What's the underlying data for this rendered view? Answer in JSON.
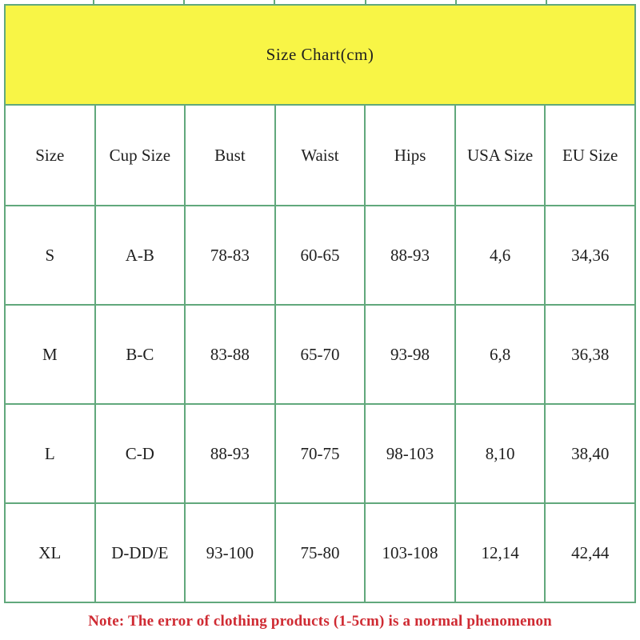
{
  "title": "Size Chart(cm)",
  "note": "Note: The error of clothing products (1-5cm) is a normal phenomenon",
  "colors": {
    "header_background": "#f8f546",
    "table_border": "#61a87c",
    "note_text": "#cf2b33",
    "cell_text": "#1f1f1f",
    "page_background": "#ffffff"
  },
  "chart_data": {
    "type": "table",
    "title": "Size Chart(cm)",
    "units": "cm",
    "columns": [
      "Size",
      "Cup Size",
      "Bust",
      "Waist",
      "Hips",
      "USA Size",
      "EU Size"
    ],
    "rows": [
      [
        "S",
        "A-B",
        "78-83",
        "60-65",
        "88-93",
        "4,6",
        "34,36"
      ],
      [
        "M",
        "B-C",
        "83-88",
        "65-70",
        "93-98",
        "6,8",
        "36,38"
      ],
      [
        "L",
        "C-D",
        "88-93",
        "70-75",
        "98-103",
        "8,10",
        "38,40"
      ],
      [
        "XL",
        "D-DD/E",
        "93-100",
        "75-80",
        "103-108",
        "12,14",
        "42,44"
      ]
    ],
    "note": "Note: The error of clothing products (1-5cm) is a normal phenomenon"
  }
}
